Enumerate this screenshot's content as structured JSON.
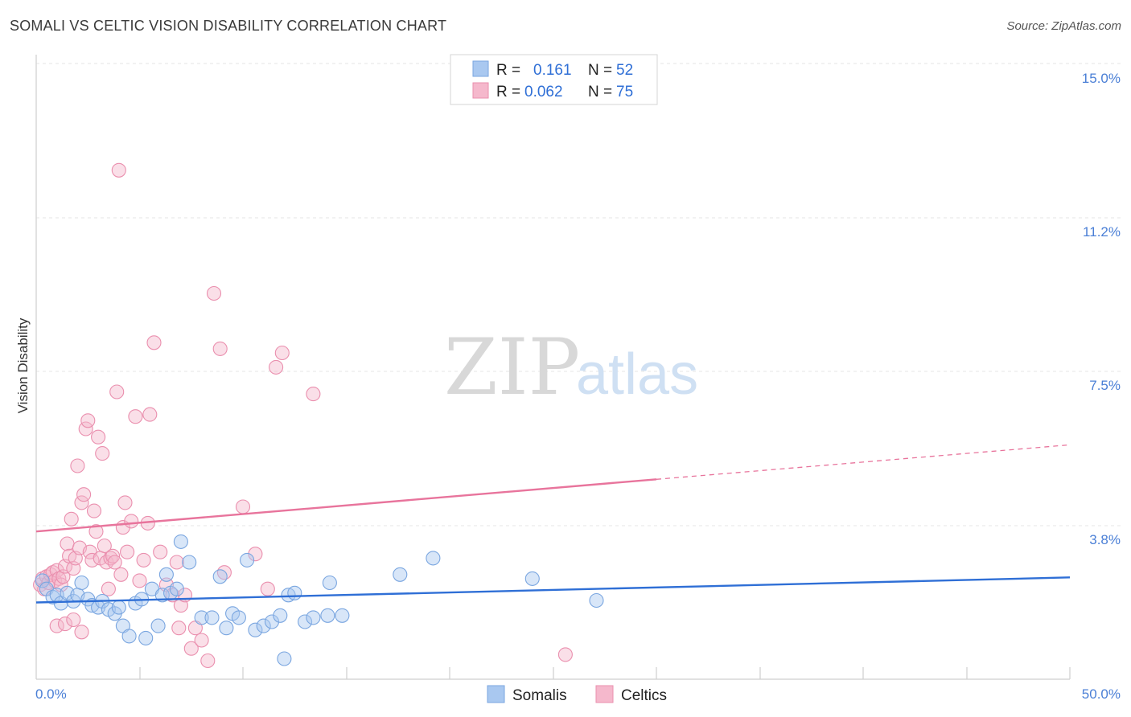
{
  "header": {
    "title": "SOMALI VS CELTIC VISION DISABILITY CORRELATION CHART",
    "source": "Source: ZipAtlas.com"
  },
  "watermark": {
    "zip": "ZIP",
    "atlas": "atlas"
  },
  "legend_top": {
    "rows": [
      {
        "r_label": "R =",
        "r_value": "0.161",
        "n_label": "N =",
        "n_value": "52",
        "color": "#a9c8f0"
      },
      {
        "r_label": "R =",
        "r_value": "0.062",
        "n_label": "N =",
        "n_value": "75",
        "color": "#f5b8cc"
      }
    ]
  },
  "legend_bottom": {
    "items": [
      {
        "label": "Somalis",
        "color": "#a9c8f0"
      },
      {
        "label": "Celtics",
        "color": "#f5b8cc"
      }
    ]
  },
  "chart_data": {
    "type": "scatter",
    "ylabel": "Vision Disability",
    "xlim": [
      0,
      50
    ],
    "ylim": [
      0,
      15.6
    ],
    "x_tick_labels": [
      {
        "value": 0,
        "label": "0.0%"
      },
      {
        "value": 50,
        "label": "50.0%"
      }
    ],
    "y_tick_labels": [
      {
        "value": 3.8,
        "label": "3.8%"
      },
      {
        "value": 7.5,
        "label": "7.5%"
      },
      {
        "value": 11.2,
        "label": "11.2%"
      },
      {
        "value": 15.0,
        "label": "15.0%"
      }
    ],
    "series": [
      {
        "name": "Somalis",
        "color": "#a9c8f0",
        "stroke": "#7aa6e0",
        "trend": {
          "x": [
            0,
            50
          ],
          "y": [
            1.87,
            2.48
          ],
          "color": "#2f6fd6"
        },
        "points": [
          [
            0.3,
            2.4
          ],
          [
            0.5,
            2.2
          ],
          [
            0.8,
            2.0
          ],
          [
            1.0,
            2.05
          ],
          [
            1.2,
            1.85
          ],
          [
            1.5,
            2.1
          ],
          [
            1.8,
            1.9
          ],
          [
            2.0,
            2.05
          ],
          [
            2.2,
            2.35
          ],
          [
            2.5,
            1.95
          ],
          [
            2.7,
            1.8
          ],
          [
            3.0,
            1.75
          ],
          [
            3.2,
            1.9
          ],
          [
            3.5,
            1.7
          ],
          [
            3.8,
            1.6
          ],
          [
            4.0,
            1.75
          ],
          [
            4.2,
            1.3
          ],
          [
            4.5,
            1.05
          ],
          [
            4.8,
            1.85
          ],
          [
            5.1,
            1.95
          ],
          [
            5.3,
            1.0
          ],
          [
            5.6,
            2.2
          ],
          [
            5.9,
            1.3
          ],
          [
            6.1,
            2.05
          ],
          [
            6.3,
            2.55
          ],
          [
            6.5,
            2.1
          ],
          [
            6.8,
            2.2
          ],
          [
            7.0,
            3.35
          ],
          [
            7.4,
            2.85
          ],
          [
            8.0,
            1.5
          ],
          [
            8.5,
            1.5
          ],
          [
            8.9,
            2.5
          ],
          [
            9.2,
            1.25
          ],
          [
            9.5,
            1.6
          ],
          [
            9.8,
            1.5
          ],
          [
            10.2,
            2.9
          ],
          [
            10.6,
            1.2
          ],
          [
            11.0,
            1.3
          ],
          [
            11.4,
            1.4
          ],
          [
            11.8,
            1.55
          ],
          [
            12.2,
            2.05
          ],
          [
            12.5,
            2.1
          ],
          [
            13.0,
            1.4
          ],
          [
            13.4,
            1.5
          ],
          [
            14.1,
            1.55
          ],
          [
            14.2,
            2.35
          ],
          [
            14.8,
            1.55
          ],
          [
            12.0,
            0.5
          ],
          [
            17.6,
            2.55
          ],
          [
            19.2,
            2.95
          ],
          [
            24.0,
            2.45
          ],
          [
            27.1,
            1.92
          ]
        ]
      },
      {
        "name": "Celtics",
        "color": "#f5b8cc",
        "stroke": "#ea8fae",
        "trend": {
          "x": [
            0,
            30
          ],
          "y": [
            3.6,
            4.87
          ],
          "color": "#e8749c",
          "dashed_extension": {
            "x": [
              30,
              50
            ],
            "y": [
              4.87,
              5.71
            ]
          }
        },
        "points": [
          [
            0.2,
            2.3
          ],
          [
            0.3,
            2.45
          ],
          [
            0.4,
            2.2
          ],
          [
            0.5,
            2.5
          ],
          [
            0.6,
            2.35
          ],
          [
            0.7,
            2.55
          ],
          [
            0.8,
            2.6
          ],
          [
            0.9,
            2.4
          ],
          [
            1.0,
            2.65
          ],
          [
            1.1,
            2.45
          ],
          [
            1.2,
            2.3
          ],
          [
            1.3,
            2.5
          ],
          [
            1.4,
            2.75
          ],
          [
            1.5,
            3.3
          ],
          [
            1.6,
            3.0
          ],
          [
            1.7,
            3.9
          ],
          [
            1.8,
            2.7
          ],
          [
            1.9,
            2.95
          ],
          [
            2.0,
            5.2
          ],
          [
            2.1,
            3.2
          ],
          [
            2.2,
            4.3
          ],
          [
            2.3,
            4.5
          ],
          [
            2.4,
            6.1
          ],
          [
            2.5,
            6.3
          ],
          [
            2.6,
            3.1
          ],
          [
            2.7,
            2.9
          ],
          [
            2.8,
            4.1
          ],
          [
            2.9,
            3.6
          ],
          [
            3.0,
            5.9
          ],
          [
            3.1,
            2.95
          ],
          [
            3.2,
            5.5
          ],
          [
            3.3,
            3.25
          ],
          [
            3.4,
            2.85
          ],
          [
            3.5,
            2.2
          ],
          [
            3.6,
            2.95
          ],
          [
            3.7,
            3.0
          ],
          [
            3.8,
            2.85
          ],
          [
            3.9,
            7.0
          ],
          [
            4.0,
            12.4
          ],
          [
            4.1,
            2.55
          ],
          [
            4.2,
            3.7
          ],
          [
            4.3,
            4.3
          ],
          [
            4.4,
            3.1
          ],
          [
            4.6,
            3.85
          ],
          [
            4.8,
            6.4
          ],
          [
            5.0,
            2.4
          ],
          [
            5.2,
            2.9
          ],
          [
            5.4,
            3.8
          ],
          [
            5.5,
            6.45
          ],
          [
            5.7,
            8.2
          ],
          [
            6.0,
            3.1
          ],
          [
            6.3,
            2.3
          ],
          [
            6.6,
            2.05
          ],
          [
            6.8,
            2.85
          ],
          [
            6.9,
            1.25
          ],
          [
            7.0,
            1.8
          ],
          [
            7.2,
            2.05
          ],
          [
            7.5,
            0.75
          ],
          [
            7.7,
            1.25
          ],
          [
            8.0,
            0.95
          ],
          [
            8.3,
            0.45
          ],
          [
            8.6,
            9.4
          ],
          [
            8.9,
            8.05
          ],
          [
            9.1,
            2.6
          ],
          [
            10.0,
            4.2
          ],
          [
            10.6,
            3.05
          ],
          [
            11.2,
            2.2
          ],
          [
            11.6,
            7.6
          ],
          [
            11.9,
            7.95
          ],
          [
            13.4,
            6.95
          ],
          [
            1.0,
            1.3
          ],
          [
            1.4,
            1.35
          ],
          [
            1.8,
            1.45
          ],
          [
            2.2,
            1.15
          ],
          [
            25.6,
            0.6
          ]
        ]
      }
    ]
  }
}
